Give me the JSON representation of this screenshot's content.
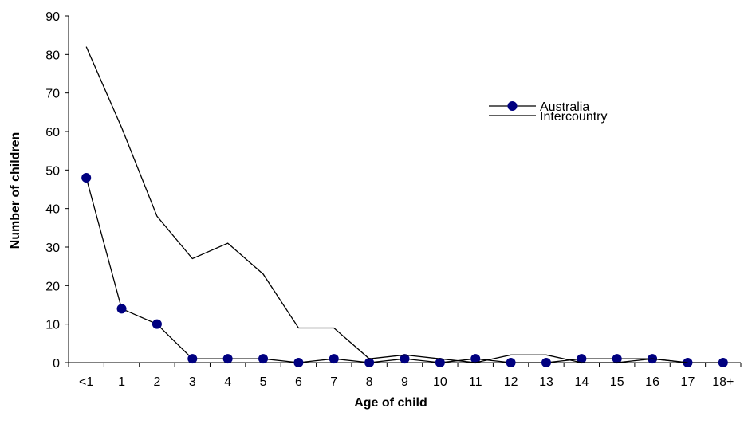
{
  "chart_data": {
    "type": "line",
    "categories": [
      "<1",
      "1",
      "2",
      "3",
      "4",
      "5",
      "6",
      "7",
      "8",
      "9",
      "10",
      "11",
      "12",
      "13",
      "14",
      "15",
      "16",
      "17",
      "18+"
    ],
    "series": [
      {
        "name": "Australia",
        "marker": "circle",
        "color": "#000080",
        "values": [
          48,
          14,
          10,
          1,
          1,
          1,
          0,
          1,
          0,
          1,
          0,
          1,
          0,
          0,
          1,
          1,
          1,
          0,
          0
        ]
      },
      {
        "name": "Intercountry",
        "marker": "none",
        "color": "#000000",
        "values": [
          82,
          61,
          38,
          27,
          31,
          23,
          9,
          9,
          1,
          2,
          1,
          0,
          2,
          2,
          0,
          0,
          1,
          0,
          null
        ]
      }
    ],
    "xlabel": "Age of child",
    "ylabel": "Number of children",
    "ylim": [
      0,
      90
    ],
    "yticks": [
      0,
      10,
      20,
      30,
      40,
      50,
      60,
      70,
      80,
      90
    ],
    "grid": false,
    "legend_position": "top-right"
  }
}
